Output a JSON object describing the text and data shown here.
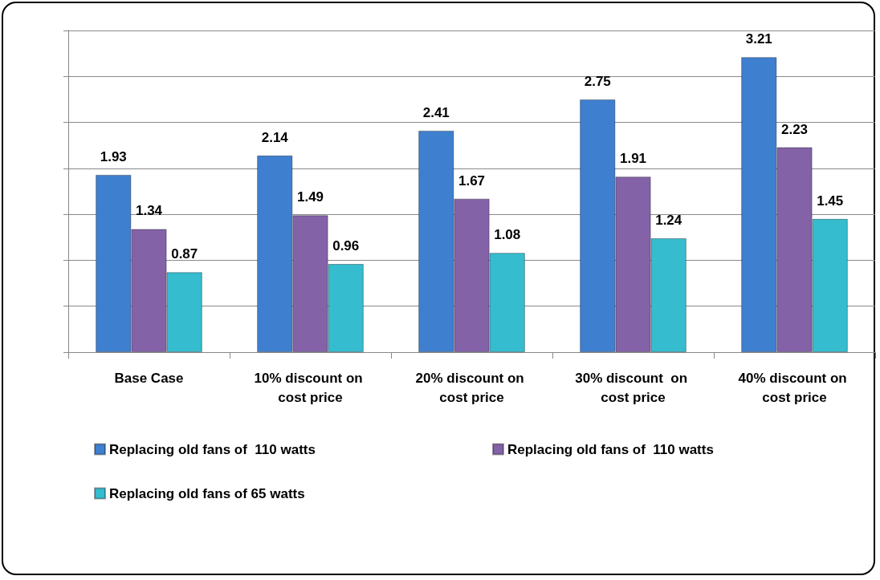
{
  "chart_data": {
    "type": "bar",
    "categories": [
      "Base Case",
      "10% discount on cost price",
      "20% discount on cost price",
      "30% discount  on cost price",
      "40% discount on cost price"
    ],
    "series": [
      {
        "name": "Replacing old fans of  110 watts",
        "color": "#3f7fd0",
        "values": [
          1.93,
          2.14,
          2.41,
          2.75,
          3.21
        ]
      },
      {
        "name": "Replacing old fans of  110 watts",
        "color": "#8462a8",
        "values": [
          1.34,
          1.49,
          1.67,
          1.91,
          2.23
        ]
      },
      {
        "name": "Replacing old fans of 65 watts",
        "color": "#35bccf",
        "values": [
          0.87,
          0.96,
          1.08,
          1.24,
          1.45
        ]
      }
    ],
    "ylim": [
      0,
      3.5
    ],
    "yticks": [
      {
        "value": 0,
        "label": null
      },
      {
        "value": 0.5,
        "label": null
      },
      {
        "value": 1,
        "label": null
      },
      {
        "value": 1.5,
        "label": null
      },
      {
        "value": 2,
        "label": null
      },
      {
        "value": 2.5,
        "label": null
      },
      {
        "value": 3,
        "label": null
      },
      {
        "value": 3.5,
        "label": null
      }
    ],
    "grid": "y",
    "legend": "bottom",
    "data_labels": true,
    "tick_labels": "x"
  }
}
